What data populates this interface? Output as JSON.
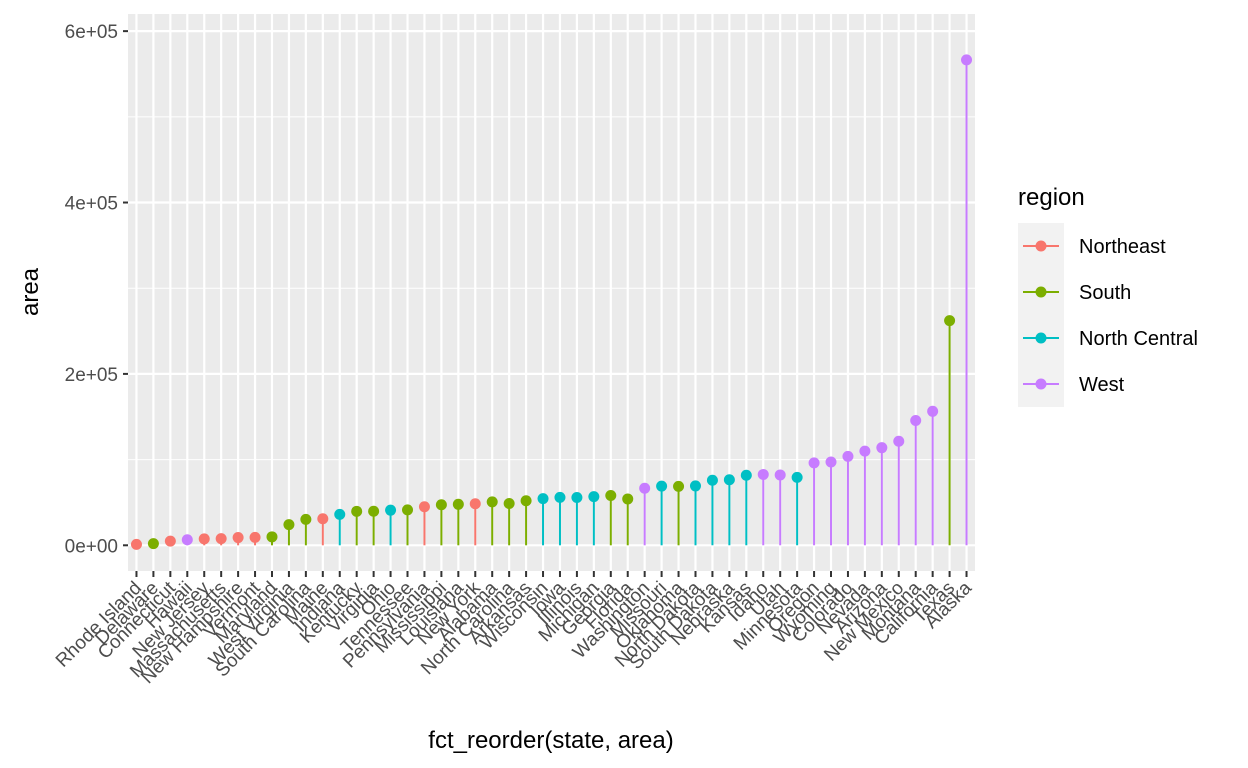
{
  "chart_data": {
    "type": "lollipop",
    "xlabel": "fct_reorder(state, area)",
    "ylabel": "area",
    "ylim": [
      -30000,
      620000
    ],
    "yticks": [
      0,
      200000,
      400000,
      600000
    ],
    "ytick_labels": [
      "0e+00",
      "2e+05",
      "4e+05",
      "6e+05"
    ],
    "grid": true,
    "legend": {
      "title": "region",
      "placement": "right",
      "entries": [
        {
          "name": "Northeast",
          "color": "#F8766D"
        },
        {
          "name": "South",
          "color": "#7CAE00"
        },
        {
          "name": "North Central",
          "color": "#00BFC4"
        },
        {
          "name": "West",
          "color": "#C77CFF"
        }
      ]
    },
    "categories": [
      "Rhode Island",
      "Delaware",
      "Connecticut",
      "Hawaii",
      "New Jersey",
      "Massachusetts",
      "New Hampshire",
      "Vermont",
      "Maryland",
      "West Virginia",
      "South Carolina",
      "Maine",
      "Indiana",
      "Kentucky",
      "Virginia",
      "Ohio",
      "Tennessee",
      "Pennsylvania",
      "Mississippi",
      "Louisiana",
      "New York",
      "Alabama",
      "North Carolina",
      "Arkansas",
      "Wisconsin",
      "Iowa",
      "Illinois",
      "Michigan",
      "Georgia",
      "Florida",
      "Washington",
      "Missouri",
      "Oklahoma",
      "North Dakota",
      "South Dakota",
      "Nebraska",
      "Kansas",
      "Idaho",
      "Utah",
      "Minnesota",
      "Oregon",
      "Wyoming",
      "Colorado",
      "Nevada",
      "Arizona",
      "New Mexico",
      "Montana",
      "California",
      "Texas",
      "Alaska"
    ],
    "values": [
      1049,
      1982,
      4862,
      6425,
      7521,
      7826,
      9027,
      9267,
      9891,
      24070,
      30225,
      30920,
      36097,
      39650,
      39780,
      40975,
      41328,
      44966,
      47296,
      47831,
      48422,
      50708,
      48798,
      51945,
      54464,
      55941,
      55748,
      56817,
      58073,
      54090,
      66570,
      68995,
      68782,
      69273,
      75955,
      76483,
      81787,
      82677,
      82096,
      79289,
      96184,
      97203,
      103766,
      109889,
      113909,
      121412,
      145587,
      156361,
      262134,
      566432
    ],
    "regions": [
      "Northeast",
      "South",
      "Northeast",
      "West",
      "Northeast",
      "Northeast",
      "Northeast",
      "Northeast",
      "South",
      "South",
      "South",
      "Northeast",
      "North Central",
      "South",
      "South",
      "North Central",
      "South",
      "Northeast",
      "South",
      "South",
      "Northeast",
      "South",
      "South",
      "South",
      "North Central",
      "North Central",
      "North Central",
      "North Central",
      "South",
      "South",
      "West",
      "North Central",
      "South",
      "North Central",
      "North Central",
      "North Central",
      "North Central",
      "West",
      "West",
      "North Central",
      "West",
      "West",
      "West",
      "West",
      "West",
      "West",
      "West",
      "West",
      "South",
      "West"
    ]
  }
}
